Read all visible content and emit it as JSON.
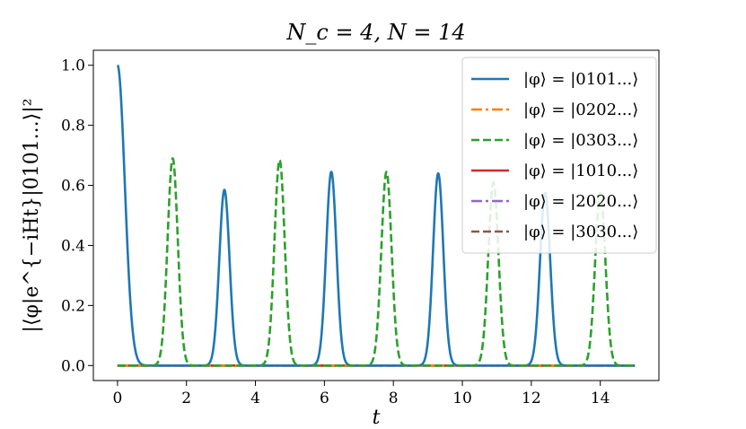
{
  "chart_data": {
    "type": "line",
    "title": "N_c = 4, N = 14",
    "xlabel": "t",
    "ylabel": "|⟨φ|e^{−iHt}|0101...⟩|²",
    "xlim": [
      -0.7,
      15.7
    ],
    "ylim": [
      -0.05,
      1.05
    ],
    "xticks": [
      0,
      2,
      4,
      6,
      8,
      10,
      12,
      14
    ],
    "yticks": [
      0.0,
      0.2,
      0.4,
      0.6,
      0.8,
      1.0
    ],
    "ytick_labels": [
      "0.0",
      "0.2",
      "0.4",
      "0.6",
      "0.8",
      "1.0"
    ],
    "grid": false,
    "legend_position": "top-right",
    "series": [
      {
        "name": "|φ⟩ = |0101...⟩",
        "color": "#1f77b4",
        "dash": "solid",
        "initial_decay": {
          "t": 0,
          "value": 1.0,
          "width": 0.3
        },
        "peaks": [
          {
            "t": 3.1,
            "value": 0.585,
            "width": 0.21
          },
          {
            "t": 6.2,
            "value": 0.645,
            "width": 0.21
          },
          {
            "t": 9.3,
            "value": 0.64,
            "width": 0.21
          },
          {
            "t": 12.4,
            "value": 0.575,
            "width": 0.21
          }
        ],
        "t_end": 15
      },
      {
        "name": "|φ⟩ = |0202...⟩",
        "color": "#ff7f0e",
        "dash": "dashdot",
        "constant": 0.0,
        "t_end": 15
      },
      {
        "name": "|φ⟩ = |0303...⟩",
        "color": "#2ca02c",
        "dash": "dashed",
        "peaks": [
          {
            "t": 1.6,
            "value": 0.69,
            "width": 0.21
          },
          {
            "t": 4.7,
            "value": 0.685,
            "width": 0.21
          },
          {
            "t": 7.8,
            "value": 0.645,
            "width": 0.21
          },
          {
            "t": 10.9,
            "value": 0.61,
            "width": 0.21
          },
          {
            "t": 14.0,
            "value": 0.575,
            "width": 0.21
          }
        ],
        "t_end": 15
      },
      {
        "name": "|φ⟩ = |1010...⟩",
        "color": "#d62728",
        "dash": "solid",
        "constant": 0.0,
        "t_end": 15
      },
      {
        "name": "|φ⟩ = |2020...⟩",
        "color": "#9467bd",
        "dash": "dashdot",
        "constant": 0.0,
        "t_end": 15
      },
      {
        "name": "|φ⟩ = |3030...⟩",
        "color": "#8c564b",
        "dash": "dashed",
        "constant": 0.0,
        "t_end": 15
      }
    ]
  }
}
